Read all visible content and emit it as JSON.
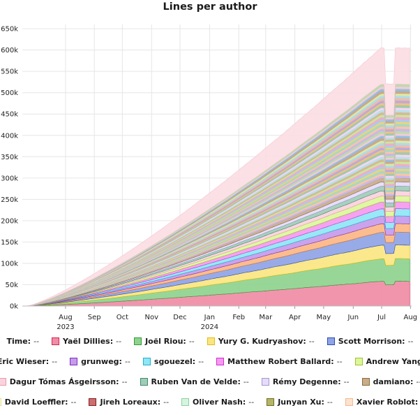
{
  "chart_data": {
    "type": "area",
    "title": "Lines per author",
    "xlabel": "",
    "ylabel": "",
    "ylim": [
      0,
      660000
    ],
    "yticks": [
      "0k",
      "50k",
      "100k",
      "150k",
      "200k",
      "250k",
      "300k",
      "350k",
      "400k",
      "450k",
      "500k",
      "550k",
      "600k",
      "650k"
    ],
    "xticks": [
      {
        "label": "Aug",
        "sub": "2023",
        "t": 0.111
      },
      {
        "label": "Sep",
        "sub": "",
        "t": 0.185
      },
      {
        "label": "Oct",
        "sub": "",
        "t": 0.257
      },
      {
        "label": "Nov",
        "sub": "",
        "t": 0.332
      },
      {
        "label": "Dec",
        "sub": "",
        "t": 0.405
      },
      {
        "label": "Jan",
        "sub": "2024",
        "t": 0.481
      },
      {
        "label": "Feb",
        "sub": "",
        "t": 0.556
      },
      {
        "label": "Mar",
        "sub": "",
        "t": 0.625
      },
      {
        "label": "Apr",
        "sub": "",
        "t": 0.7
      },
      {
        "label": "May",
        "sub": "",
        "t": 0.774
      },
      {
        "label": "Jun",
        "sub": "",
        "t": 0.85
      },
      {
        "label": "Jul",
        "sub": "",
        "t": 0.923
      },
      {
        "label": "Aug",
        "sub": "",
        "t": 0.997
      }
    ],
    "grid": true,
    "stacked_total_max": 605000,
    "named_series_values_at_end": [
      {
        "name": "Yaël Dillies",
        "value": 58000
      },
      {
        "name": "Joël Riou",
        "value": 53000
      },
      {
        "name": "Yury G. Kudryashov",
        "value": 32000
      },
      {
        "name": "Scott Morrison",
        "value": 30000
      },
      {
        "name": "Eric Wieser",
        "value": 20000
      },
      {
        "name": "grunweg",
        "value": 18000
      },
      {
        "name": "sgouezel",
        "value": 17000
      },
      {
        "name": "Matthew Robert Ballard",
        "value": 16000
      },
      {
        "name": "Andrew Yang",
        "value": 14000
      },
      {
        "name": "Dagur Tómas Ásgeirsson",
        "value": 12000
      },
      {
        "name": "Ruben Van de Velde",
        "value": 11000
      },
      {
        "name": "Rémy Degenne",
        "value": 10000
      },
      {
        "name": "damiano",
        "value": 9000
      }
    ],
    "others_total_at_end": 220000,
    "unattributed_top_band_at_end": 85000
  },
  "legend": {
    "time_label": "Time:",
    "empty_value": "--",
    "rows": [
      [
        {
          "name": "Yaël Dillies",
          "fill": "#f08ca6",
          "stroke": "#d8254f"
        },
        {
          "name": "Joël Riou",
          "fill": "#8fd28f",
          "stroke": "#2f9d37"
        },
        {
          "name": "Yury G. Kudryashov",
          "fill": "#fbe582",
          "stroke": "#e2be0c"
        },
        {
          "name": "Scott Morrison",
          "fill": "#8fa4e6",
          "stroke": "#2b4bb8"
        }
      ],
      [
        {
          "name": "Eric Wieser",
          "fill": "#fbb786",
          "stroke": "#e0782a"
        },
        {
          "name": "grunweg",
          "fill": "#c59bea",
          "stroke": "#7d2fc4"
        },
        {
          "name": "sgouezel",
          "fill": "#8fe6f5",
          "stroke": "#1db4cf"
        },
        {
          "name": "Matthew Robert Ballard",
          "fill": "#f59af0",
          "stroke": "#d62cd0"
        },
        {
          "name": "Andrew Yang",
          "fill": "#dcf79b",
          "stroke": "#9cc52a"
        }
      ],
      [
        {
          "name": "Dagur Tómas Ásgeirsson",
          "fill": "#fad3dd",
          "stroke": "#e89aae"
        },
        {
          "name": "Ruben Van de Velde",
          "fill": "#a0cdb9",
          "stroke": "#3f8a6a"
        },
        {
          "name": "Rémy Degenne",
          "fill": "#e6dcf7",
          "stroke": "#a596d2"
        },
        {
          "name": "damiano",
          "fill": "#c8ad8b",
          "stroke": "#8d6a3e"
        }
      ],
      [
        {
          "name": "David Loeffler",
          "fill": "#fffbd5",
          "stroke": "#e6df96"
        },
        {
          "name": "Jireh Loreaux",
          "fill": "#c97070",
          "stroke": "#8b1c1c"
        },
        {
          "name": "Oliver Nash",
          "fill": "#d5f5df",
          "stroke": "#8fcf9f"
        },
        {
          "name": "Junyan Xu",
          "fill": "#b5b56a",
          "stroke": "#6f6f1f"
        },
        {
          "name": "Xavier Roblot",
          "fill": "#fde3cf",
          "stroke": "#f0b890"
        }
      ]
    ]
  }
}
